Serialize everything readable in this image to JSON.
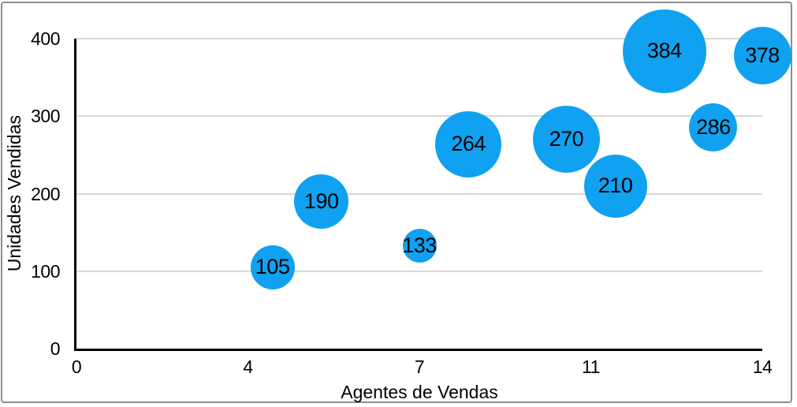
{
  "figure": {
    "frame_color": "#8d8d8d",
    "background": "#ffffff"
  },
  "chart_data": {
    "type": "scatter",
    "subtype": "bubble",
    "title": "",
    "xlabel": "Agentes de Vendas",
    "ylabel": "Unidades Vendidas",
    "xlim": [
      0,
      14
    ],
    "ylim": [
      0,
      400
    ],
    "grid": "horizontal",
    "legend": "none",
    "bubble_color": "#10A1F0",
    "label_color": "#000000",
    "axis_color": "#000000",
    "gridline_color": "#d7d7d7",
    "x_ticks": [
      {
        "value": 0,
        "label": "0"
      },
      {
        "value": 3.5,
        "label": "4"
      },
      {
        "value": 7,
        "label": "7"
      },
      {
        "value": 10.5,
        "label": "11"
      },
      {
        "value": 14,
        "label": "14"
      }
    ],
    "y_ticks": [
      {
        "value": 0,
        "label": "0"
      },
      {
        "value": 100,
        "label": "100"
      },
      {
        "value": 200,
        "label": "200"
      },
      {
        "value": 300,
        "label": "300"
      },
      {
        "value": 400,
        "label": "400"
      }
    ],
    "points": [
      {
        "x": 4,
        "y": 105,
        "label": "105",
        "radius_px": 28
      },
      {
        "x": 5,
        "y": 190,
        "label": "190",
        "radius_px": 34.5
      },
      {
        "x": 7,
        "y": 133,
        "label": "133",
        "radius_px": 21.5
      },
      {
        "x": 8,
        "y": 264,
        "label": "264",
        "radius_px": 42
      },
      {
        "x": 10,
        "y": 270,
        "label": "270",
        "radius_px": 42.5
      },
      {
        "x": 11,
        "y": 210,
        "label": "210",
        "radius_px": 40
      },
      {
        "x": 12,
        "y": 384,
        "label": "384",
        "radius_px": 53
      },
      {
        "x": 13,
        "y": 286,
        "label": "286",
        "radius_px": 30.5
      },
      {
        "x": 14,
        "y": 378,
        "label": "378",
        "radius_px": 36.5
      }
    ]
  }
}
